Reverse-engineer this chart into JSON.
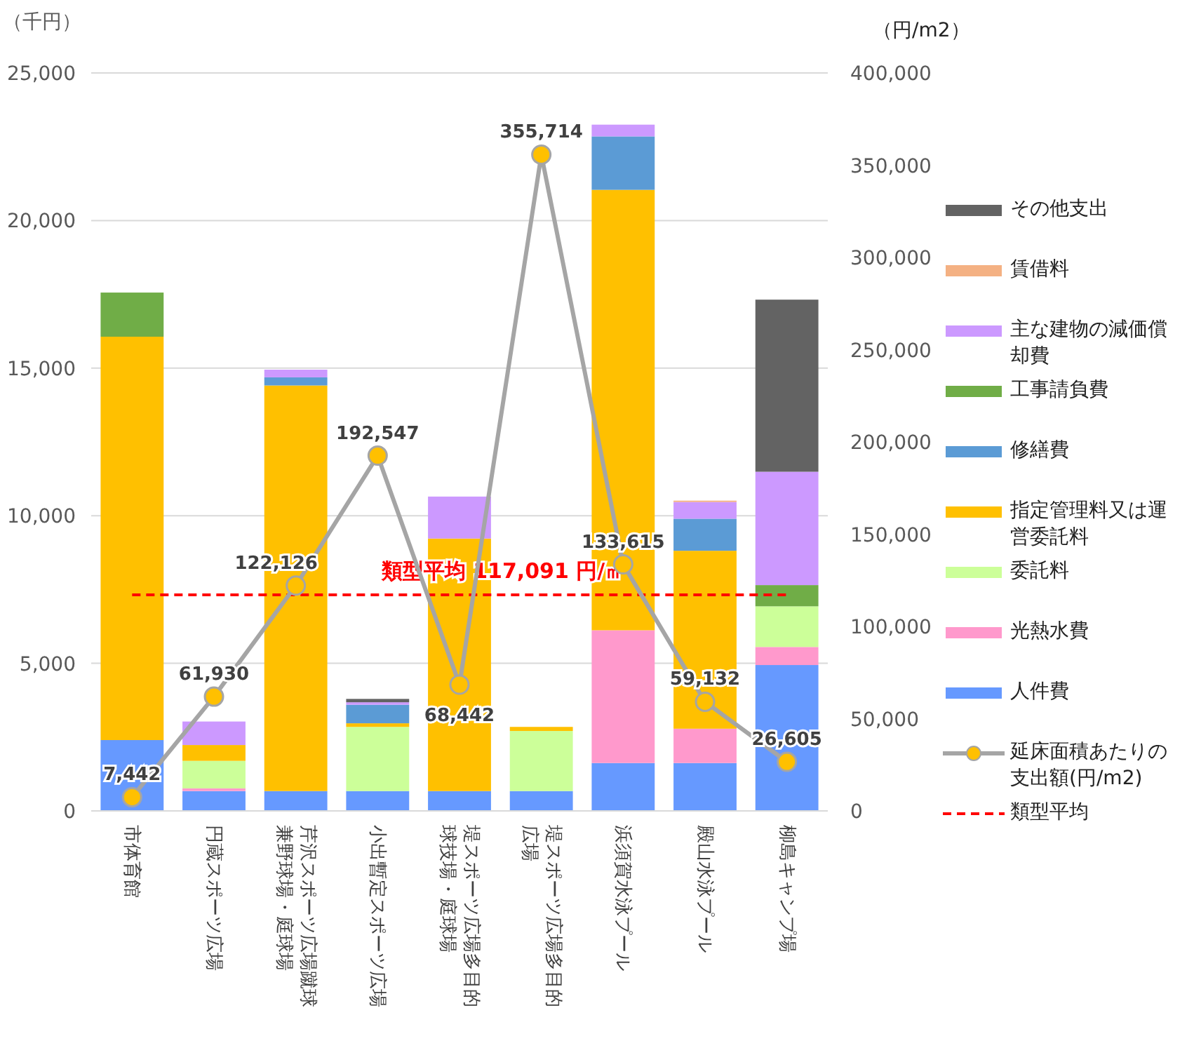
{
  "chart_data": {
    "type": "bar",
    "stacked": true,
    "ylabel": "（千円）",
    "y2label": "（円/m2）",
    "categories": [
      "市体育館",
      "円蔵スポーツ広場",
      "芹沢スポーツ広場蹴球兼野球場・庭球場",
      "小出暫定スポーツ広場",
      "堤スポーツ広場多目的球技場・庭球場",
      "堤スポーツ広場多目的広場",
      "浜須賀水泳プール",
      "殿山水泳プール",
      "柳島キャンプ場"
    ],
    "series": [
      {
        "name": "人件費",
        "color": "#6699ff",
        "values": [
          2400,
          673,
          673,
          673,
          673,
          673,
          1622,
          1622,
          4942
        ]
      },
      {
        "name": "光熱水費",
        "color": "#ff99cc",
        "values": [
          null,
          90,
          null,
          null,
          null,
          null,
          4498,
          1163,
          612
        ]
      },
      {
        "name": "委託料",
        "color": "#ccff99",
        "values": [
          null,
          933,
          null,
          2173,
          null,
          2035,
          null,
          null,
          1377
        ]
      },
      {
        "name": "指定管理料又は運営委託料",
        "color": "#ffc000",
        "values": [
          13665,
          536,
          13740,
          122,
          8553,
          138,
          14920,
          6028,
          null
        ]
      },
      {
        "name": "修繕費",
        "color": "#5b9bd5",
        "values": [
          null,
          null,
          275,
          628,
          null,
          null,
          1811,
          1086,
          null
        ]
      },
      {
        "name": "工事請負費",
        "color": "#70ad47",
        "values": [
          1495,
          null,
          null,
          null,
          null,
          null,
          null,
          null,
          719
        ]
      },
      {
        "name": "主な建物の減価償却費",
        "color": "#cc99ff",
        "values": [
          null,
          796,
          260,
          84,
          1423,
          null,
          398,
          566,
          3840
        ]
      },
      {
        "name": "賃借料",
        "color": "#f4b183",
        "values": [
          null,
          null,
          null,
          null,
          null,
          null,
          null,
          46,
          null
        ]
      },
      {
        "name": "その他支出",
        "color": "#636363",
        "values": [
          null,
          null,
          null,
          114,
          null,
          null,
          null,
          null,
          5830
        ]
      },
      {
        "name": "延床面積あたりの支出額(円/m2)",
        "type": "line",
        "axis": "y2",
        "color": "#a5a5a5",
        "marker": "circle",
        "values": [
          7442,
          61930,
          122126,
          192547,
          68442,
          355714,
          133615,
          59132,
          26605
        ],
        "value_labels": [
          "7,442",
          "61,930",
          "122,126",
          "192,547",
          "68,442",
          "355,714",
          "133,615",
          "59,132",
          "26,605"
        ]
      }
    ],
    "ylim": [
      0,
      25000
    ],
    "yticks": [
      {
        "value": 0,
        "label": "0"
      },
      {
        "value": 5000,
        "label": "5,000"
      },
      {
        "value": 10000,
        "label": "10,000"
      },
      {
        "value": 15000,
        "label": "15,000"
      },
      {
        "value": 20000,
        "label": "20,000"
      },
      {
        "value": 25000,
        "label": "25,000"
      }
    ],
    "y2lim": [
      0,
      400000
    ],
    "y2ticks": [
      {
        "value": 0,
        "label": "0"
      },
      {
        "value": 50000,
        "label": "50,000"
      },
      {
        "value": 100000,
        "label": "100,000"
      },
      {
        "value": 150000,
        "label": "150,000"
      },
      {
        "value": 200000,
        "label": "200,000"
      },
      {
        "value": 250000,
        "label": "250,000"
      },
      {
        "value": 300000,
        "label": "300,000"
      },
      {
        "value": 350000,
        "label": "350,000"
      },
      {
        "value": 400000,
        "label": "400,000"
      }
    ],
    "ref_lines": [
      {
        "axis": "y2",
        "value": 117091,
        "label": "類型平均",
        "color": "#ff0000",
        "line_style": "dashed"
      }
    ],
    "annotations": [
      "類型平均 117,091 円/㎡"
    ],
    "grid": "y",
    "legend": "right"
  }
}
